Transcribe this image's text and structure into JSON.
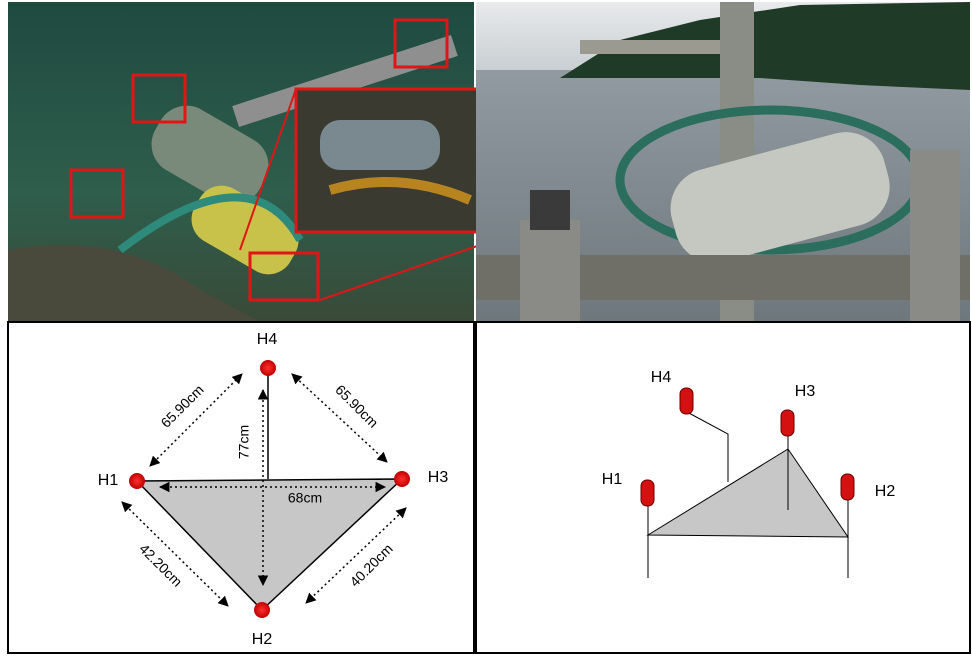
{
  "left_diagram": {
    "nodes": [
      {
        "label": "H1"
      },
      {
        "label": "H2"
      },
      {
        "label": "H3"
      },
      {
        "label": "H4"
      }
    ],
    "distances": [
      {
        "label": "65.90cm"
      },
      {
        "label": "65.90cm"
      },
      {
        "label": "77cm"
      },
      {
        "label": "68cm"
      },
      {
        "label": "42.20cm"
      },
      {
        "label": "40.20cm"
      }
    ]
  },
  "right_diagram": {
    "nodes": [
      {
        "label": "H1"
      },
      {
        "label": "H2"
      },
      {
        "label": "H3"
      },
      {
        "label": "H4"
      }
    ]
  }
}
